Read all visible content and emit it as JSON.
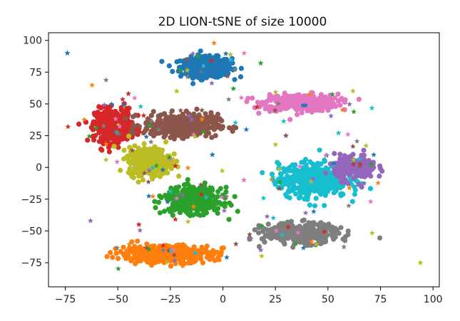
{
  "chart_data": {
    "type": "scatter",
    "title": "2D LION-tSNE of size 10000",
    "xlabel": "",
    "ylabel": "",
    "xlim": [
      -83,
      103
    ],
    "ylim": [
      -94,
      106
    ],
    "xticks": [
      -75,
      -50,
      -25,
      0,
      25,
      50,
      75,
      100
    ],
    "yticks": [
      -75,
      -50,
      -25,
      0,
      25,
      50,
      75,
      100
    ],
    "grid": false,
    "legend": "none",
    "clusters": [
      {
        "color": "#1f77b4",
        "center": [
          -8,
          79
        ],
        "spread": [
          11,
          7
        ],
        "count": 420
      },
      {
        "color": "#e377c2",
        "center": [
          37,
          51
        ],
        "spread": [
          16,
          6
        ],
        "count": 380
      },
      {
        "color": "#d62728",
        "center": [
          -52,
          33
        ],
        "spread": [
          8,
          12
        ],
        "count": 420
      },
      {
        "color": "#8c564b",
        "center": [
          -20,
          33
        ],
        "spread": [
          16,
          8
        ],
        "count": 400
      },
      {
        "color": "#bcbd22",
        "center": [
          -35,
          5
        ],
        "spread": [
          9,
          10
        ],
        "count": 420
      },
      {
        "color": "#17becf",
        "center": [
          43,
          -10
        ],
        "spread": [
          15,
          12
        ],
        "count": 460
      },
      {
        "color": "#9467bd",
        "center": [
          63,
          0
        ],
        "spread": [
          9,
          9
        ],
        "count": 200
      },
      {
        "color": "#2ca02c",
        "center": [
          -14,
          -26
        ],
        "spread": [
          12,
          9
        ],
        "count": 420
      },
      {
        "color": "#7f7f7f",
        "center": [
          37,
          -52
        ],
        "spread": [
          16,
          7
        ],
        "count": 380
      },
      {
        "color": "#ff7f0e",
        "center": [
          -27,
          -68
        ],
        "spread": [
          20,
          6
        ],
        "count": 460
      }
    ],
    "outlier_stars": [
      {
        "x": -74,
        "y": 90,
        "color": "#1f77b4"
      },
      {
        "x": -63,
        "y": -42,
        "color": "#9467bd"
      },
      {
        "x": 94,
        "y": -75,
        "color": "#bcbd22"
      },
      {
        "x": 55,
        "y": 27,
        "color": "#17becf"
      },
      {
        "x": -45,
        "y": 58,
        "color": "#d62728"
      },
      {
        "x": 5,
        "y": 62,
        "color": "#2ca02c"
      },
      {
        "x": 18,
        "y": 82,
        "color": "#2ca02c"
      },
      {
        "x": -10,
        "y": 45,
        "color": "#8c564b"
      },
      {
        "x": 25,
        "y": 18,
        "color": "#bcbd22"
      },
      {
        "x": -5,
        "y": 10,
        "color": "#1f77b4"
      },
      {
        "x": 10,
        "y": -10,
        "color": "#e377c2"
      },
      {
        "x": -40,
        "y": -45,
        "color": "#d62728"
      },
      {
        "x": 18,
        "y": -65,
        "color": "#9467bd"
      },
      {
        "x": 30,
        "y": 25,
        "color": "#8c564b"
      },
      {
        "x": -22,
        "y": 60,
        "color": "#bcbd22"
      }
    ]
  }
}
